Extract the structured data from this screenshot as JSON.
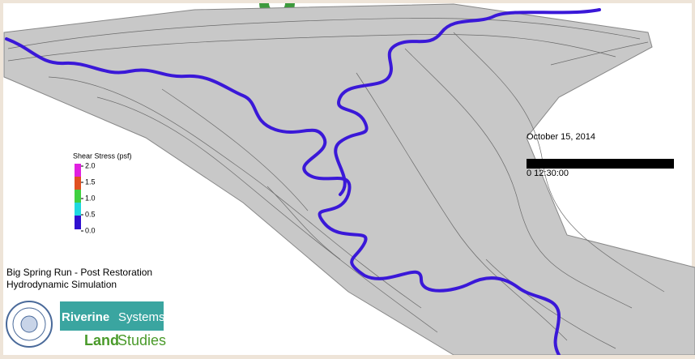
{
  "legend": {
    "title": "Shear Stress (psf)",
    "ticks": [
      {
        "value": 2,
        "label": "2.0"
      },
      {
        "value": 1.5,
        "label": "1.5"
      },
      {
        "value": 1,
        "label": "1.0"
      },
      {
        "value": 0.5,
        "label": "0.5"
      },
      {
        "value": 0,
        "label": "0.0"
      }
    ],
    "colors": [
      "#e020e0",
      "#e05020",
      "#40d040",
      "#20d8e0",
      "#3010d0"
    ],
    "ylim": [
      0,
      2
    ]
  },
  "date": "October 15, 2014",
  "time": "0 12:30:00",
  "caption": {
    "line1": "Big Spring Run - Post Restoration",
    "line2": "Hydrodynamic Simulation"
  },
  "logos": {
    "riverine": "Riverine",
    "systems": "Systems",
    "land": "Land",
    "studies": "Studies"
  }
}
